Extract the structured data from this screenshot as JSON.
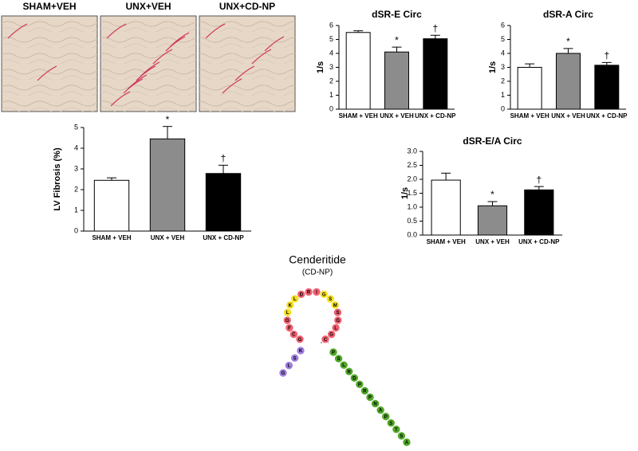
{
  "panels": [
    {
      "label": "SHAM+VEH",
      "fibers": 2
    },
    {
      "label": "UNX+VEH",
      "fibers": 9
    },
    {
      "label": "UNX+CD-NP",
      "fibers": 5
    }
  ],
  "chart_data": [
    {
      "type": "bar",
      "ylabel": "LV Fibrosis (%)",
      "categories": [
        "SHAM + VEH",
        "UNX + VEH",
        "UNX + CD-NP"
      ],
      "values": [
        2.45,
        4.45,
        2.78
      ],
      "errors": [
        0.12,
        0.6,
        0.4
      ],
      "colors": [
        "#ffffff",
        "#8c8c8c",
        "#000000"
      ],
      "markers": [
        null,
        "*",
        "†"
      ],
      "ylim": [
        0,
        5
      ],
      "yticks": [
        0,
        1,
        2,
        3,
        4,
        5
      ]
    },
    {
      "type": "bar",
      "title": "dSR-E Circ",
      "ylabel": "1/s",
      "categories": [
        "SHAM + VEH",
        "UNX + VEH",
        "UNX + CD-NP"
      ],
      "values": [
        5.5,
        4.1,
        5.05
      ],
      "errors": [
        0.12,
        0.35,
        0.25
      ],
      "colors": [
        "#ffffff",
        "#8c8c8c",
        "#000000"
      ],
      "markers": [
        null,
        "*",
        "†"
      ],
      "ylim": [
        0,
        6
      ],
      "yticks": [
        0,
        1,
        2,
        3,
        4,
        5,
        6
      ]
    },
    {
      "type": "bar",
      "title": "dSR-A Circ",
      "ylabel": "1/s",
      "categories": [
        "SHAM + VEH",
        "UNX + VEH",
        "UNX + CD-NP"
      ],
      "values": [
        3.0,
        4.0,
        3.15
      ],
      "errors": [
        0.25,
        0.35,
        0.2
      ],
      "colors": [
        "#ffffff",
        "#8c8c8c",
        "#000000"
      ],
      "markers": [
        null,
        "*",
        "†"
      ],
      "ylim": [
        0,
        6
      ],
      "yticks": [
        0,
        1,
        2,
        3,
        4,
        5,
        6
      ]
    },
    {
      "type": "bar",
      "title": "dSR-E/A Circ",
      "ylabel": "1/s",
      "categories": [
        "SHAM + VEH",
        "UNX + VEH",
        "UNX + CD-NP"
      ],
      "values": [
        1.97,
        1.05,
        1.62
      ],
      "errors": [
        0.25,
        0.15,
        0.12
      ],
      "colors": [
        "#ffffff",
        "#8c8c8c",
        "#000000"
      ],
      "markers": [
        null,
        "*",
        "†"
      ],
      "ylim": [
        0,
        3
      ],
      "yticks": [
        {
          "value": 0,
          "label": "0.0"
        },
        0.5,
        {
          "value": 1,
          "label": "1.0"
        },
        1.5,
        {
          "value": 2,
          "label": "2.0"
        },
        2.5,
        {
          "value": 3,
          "label": "3.0"
        }
      ]
    }
  ],
  "peptide": {
    "title": "Cenderitide",
    "subtitle": "(CD-NP)",
    "tail_n": [
      "G",
      "L",
      "S",
      "K"
    ],
    "loop": [
      "G",
      "C",
      "F",
      "G",
      "L",
      "K",
      "L",
      "D",
      "R",
      "I",
      "G",
      "S",
      "M",
      "S",
      "G",
      "L",
      "G",
      "C"
    ],
    "loop_colors": [
      "#f06070",
      "#f06070",
      "#f06070",
      "#f06070",
      "#f5e020",
      "#f5e020",
      "#f5e020",
      "#f06070",
      "#f06070",
      "#f06070",
      "#f5e020",
      "#f5e020",
      "#f5e020",
      "#f06070",
      "#f06070",
      "#f06070",
      "#f06070",
      "#f06070"
    ],
    "tail_n_color": "#a07ee0",
    "tail_c_color": "#50a828",
    "tail_c": [
      "P",
      "S",
      "L",
      "R",
      "D",
      "P",
      "R",
      "P",
      "N",
      "A",
      "P",
      "S",
      "T",
      "S",
      "A"
    ]
  }
}
